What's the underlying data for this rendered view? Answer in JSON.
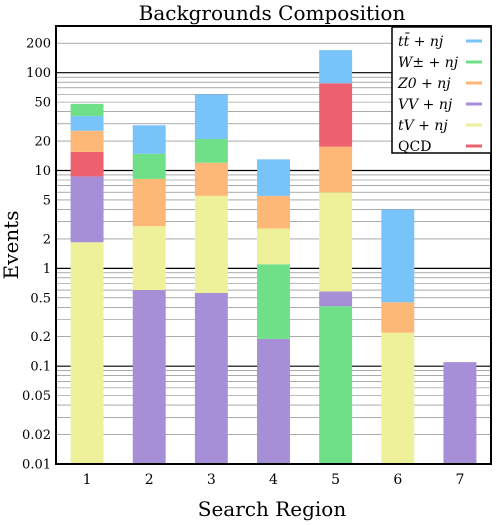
{
  "chart_data": {
    "type": "bar",
    "stacked": true,
    "title": "Backgrounds Composition",
    "xlabel": "Search Region",
    "ylabel": "Events",
    "yscale": "log",
    "ylim": [
      0.01,
      300
    ],
    "yticks": [
      0.01,
      0.02,
      0.05,
      0.1,
      0.2,
      0.5,
      1,
      2,
      5,
      10,
      20,
      50,
      100,
      200
    ],
    "ytick_labels": [
      "0.01",
      "0.02",
      "0.05",
      "0.1",
      "0.2",
      "0.5",
      "1",
      "2",
      "5",
      "10",
      "20",
      "50",
      "100",
      "200"
    ],
    "categories": [
      "1",
      "2",
      "3",
      "4",
      "5",
      "6",
      "7"
    ],
    "grid": true,
    "legend_position": "top-right",
    "series": [
      {
        "name": "tV + nj",
        "color": "#eef09a",
        "cumulative": [
          1.85,
          2.7,
          5.5,
          2.55,
          6.0,
          0.22,
          null
        ]
      },
      {
        "name": "VV + nj",
        "color": "#a68fd6",
        "cumulative": [
          8.7,
          0.6,
          0.56,
          0.19,
          0.58,
          null,
          0.11
        ]
      },
      {
        "name": "QCD",
        "color": "#ee6270",
        "cumulative": [
          15.5,
          null,
          null,
          null,
          78,
          null,
          null
        ]
      },
      {
        "name": "W± + nj",
        "color": "#6fe088",
        "cumulative": [
          48,
          14.8,
          21,
          1.1,
          0.41,
          null,
          null
        ]
      },
      {
        "name": "Z0 + nj",
        "color": "#fdb877",
        "cumulative": [
          25.5,
          8.2,
          12,
          5.5,
          17.5,
          0.45,
          null
        ]
      },
      {
        "name": "tt̄ + nj",
        "color": "#79c3fb",
        "cumulative": [
          36,
          29,
          60,
          13,
          170,
          4.0,
          null
        ]
      }
    ],
    "stack_order": [
      [
        "tV + nj",
        "VV + nj",
        "QCD",
        "Z0 + nj",
        "tt̄ + nj",
        "W± + nj"
      ],
      [
        "VV + nj",
        "tV + nj",
        "Z0 + nj",
        "W± + nj",
        "tt̄ + nj"
      ],
      [
        "VV + nj",
        "tV + nj",
        "Z0 + nj",
        "W± + nj",
        "tt̄ + nj"
      ],
      [
        "VV + nj",
        "W± + nj",
        "tV + nj",
        "Z0 + nj",
        "tt̄ + nj"
      ],
      [
        "W± + nj",
        "VV + nj",
        "tV + nj",
        "Z0 + nj",
        "QCD",
        "tt̄ + nj"
      ],
      [
        "tV + nj",
        "Z0 + nj",
        "tt̄ + nj"
      ],
      [
        "VV + nj"
      ]
    ],
    "legend": [
      "tt̄ + nj",
      "W± + nj",
      "Z0 + nj",
      "VV + nj",
      "tV + nj",
      "QCD"
    ]
  }
}
